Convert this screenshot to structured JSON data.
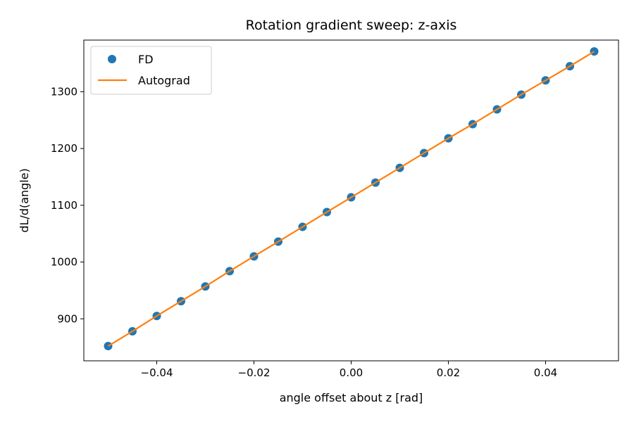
{
  "chart_data": {
    "type": "line",
    "title": "Rotation gradient sweep: z-axis",
    "xlabel": "angle offset about z [rad]",
    "ylabel": "dL/d(angle)",
    "xlim": [
      -0.055,
      0.055
    ],
    "ylim": [
      826,
      1391
    ],
    "x_ticks": [
      -0.04,
      -0.02,
      0.0,
      0.02,
      0.04
    ],
    "x_tick_labels": [
      "−0.04",
      "−0.02",
      "0.00",
      "0.02",
      "0.04"
    ],
    "y_ticks": [
      900,
      1000,
      1100,
      1200,
      1300
    ],
    "y_tick_labels": [
      "900",
      "1000",
      "1100",
      "1200",
      "1300"
    ],
    "grid": false,
    "legend_position": "upper-left",
    "x": [
      -0.05,
      -0.045,
      -0.04,
      -0.035,
      -0.03,
      -0.025,
      -0.02,
      -0.015,
      -0.01,
      -0.005,
      0.0,
      0.005,
      0.01,
      0.015,
      0.02,
      0.025,
      0.03,
      0.035,
      0.04,
      0.045,
      0.05
    ],
    "series": [
      {
        "name": "FD",
        "style": "markers",
        "color": "#1f77b4",
        "values": [
          852,
          878,
          905,
          931,
          957,
          984,
          1010,
          1036,
          1062,
          1088,
          1114,
          1140,
          1166,
          1192,
          1218,
          1243,
          1269,
          1295,
          1320,
          1345,
          1371
        ]
      },
      {
        "name": "Autograd",
        "style": "line",
        "color": "#ff7f0e",
        "values": [
          852,
          878,
          905,
          931,
          957,
          984,
          1010,
          1036,
          1062,
          1088,
          1114,
          1140,
          1166,
          1192,
          1218,
          1243,
          1269,
          1295,
          1320,
          1345,
          1371
        ]
      }
    ]
  }
}
